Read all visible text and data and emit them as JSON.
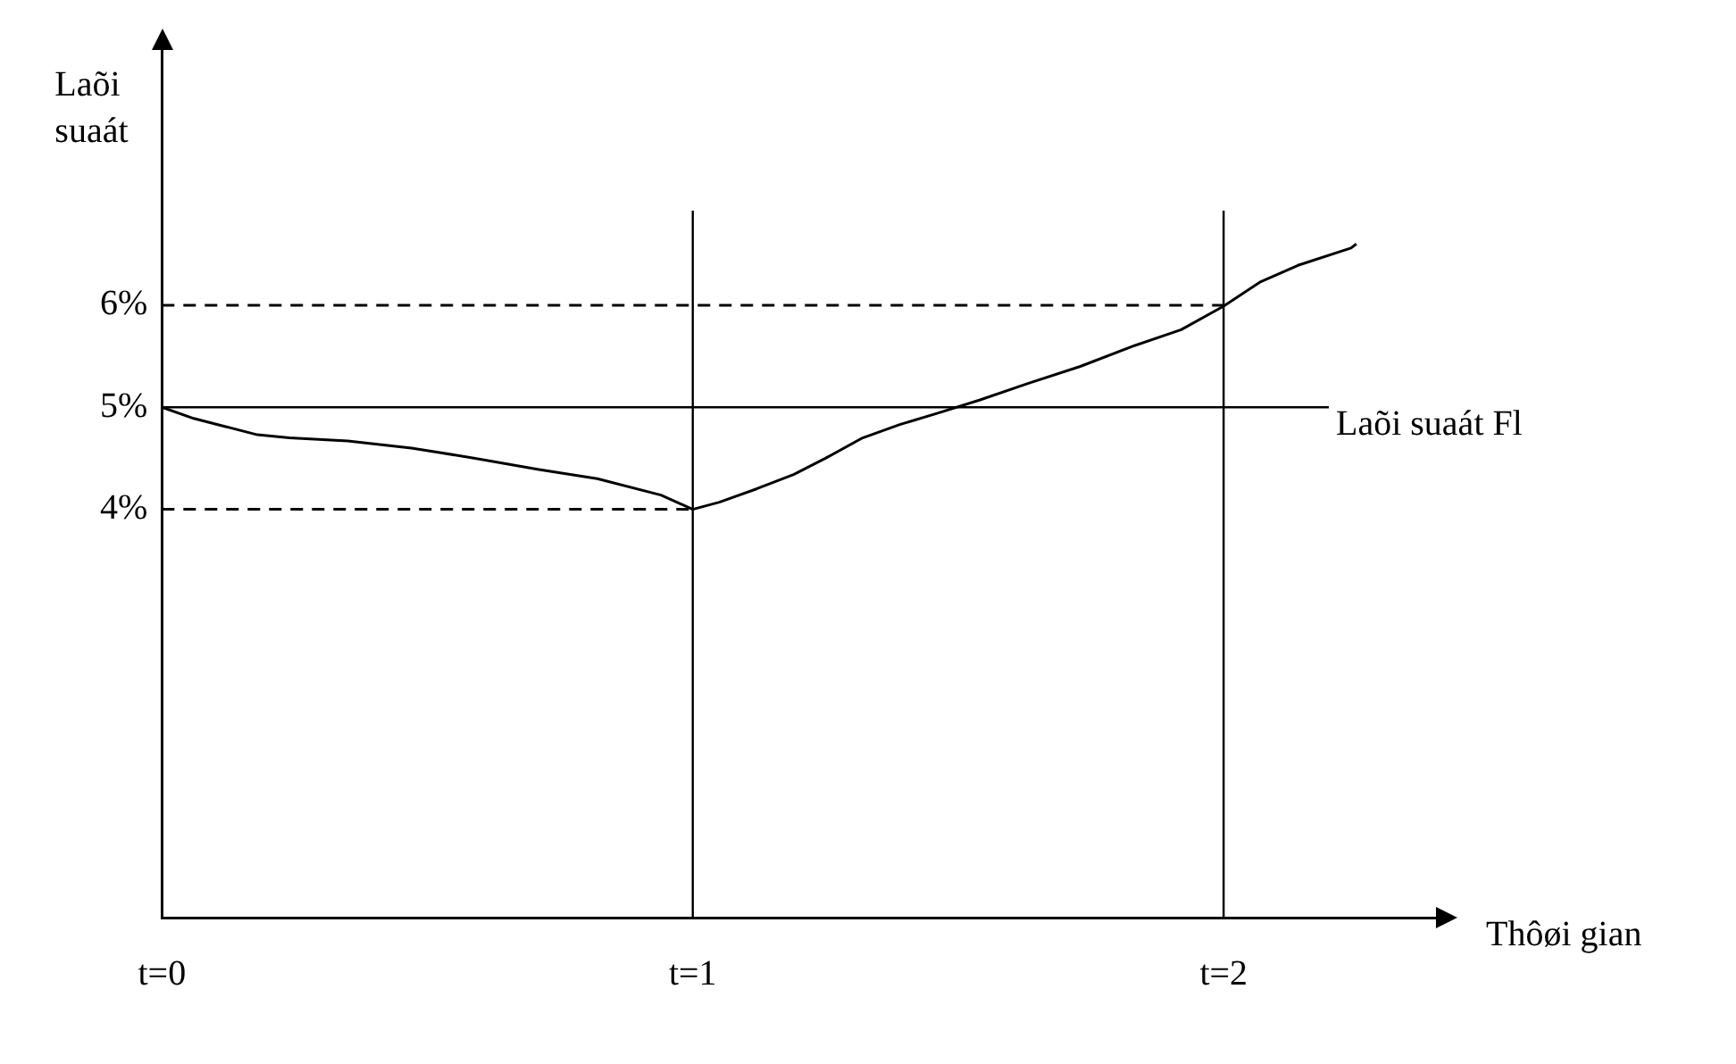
{
  "chart_data": {
    "type": "line",
    "ylabel": "Laõi suaát",
    "xlabel": "Thôøi gian",
    "xlim": [
      0,
      2.4
    ],
    "ylim": [
      0,
      8.5
    ],
    "xticks": [
      {
        "value": 0,
        "label": "t=0"
      },
      {
        "value": 1,
        "label": "t=1"
      },
      {
        "value": 2,
        "label": "t=2"
      }
    ],
    "yticks": [
      {
        "value": 4,
        "label": "4%"
      },
      {
        "value": 5,
        "label": "5%"
      },
      {
        "value": 6,
        "label": "6%"
      }
    ],
    "grid": false,
    "legend": false,
    "marker": "none",
    "series": [
      {
        "color": "#000000",
        "line_style": "solid",
        "x": [
          0,
          0.06,
          0.12,
          0.18,
          0.24,
          0.35,
          0.47,
          0.59,
          0.71,
          0.82,
          0.94,
          1.0,
          1.05,
          1.12,
          1.19,
          1.25,
          1.32,
          1.39,
          1.46,
          1.54,
          1.63,
          1.73,
          1.83,
          1.92,
          2.0,
          2.07,
          2.14,
          2.24,
          2.25
        ],
        "values": [
          5.0,
          4.89,
          4.81,
          4.73,
          4.7,
          4.67,
          4.6,
          4.5,
          4.39,
          4.3,
          4.14,
          4.0,
          4.07,
          4.2,
          4.34,
          4.5,
          4.7,
          4.83,
          4.94,
          5.07,
          5.23,
          5.4,
          5.6,
          5.76,
          5.99,
          6.23,
          6.39,
          6.56,
          6.6
        ]
      },
      {
        "color": "#000000",
        "line_style": "dashed",
        "x": [
          0,
          1
        ],
        "values": [
          4,
          4
        ]
      },
      {
        "color": "#000000",
        "line_style": "dashed",
        "x": [
          0,
          2
        ],
        "values": [
          6,
          6
        ]
      }
    ],
    "ref_lines": [
      {
        "axis": "y",
        "value": 5,
        "label": "Laõi suaát Fl",
        "color": "#000000"
      },
      {
        "axis": "x",
        "value": 1,
        "color": "#000000"
      },
      {
        "axis": "x",
        "value": 2,
        "color": "#000000"
      }
    ]
  }
}
